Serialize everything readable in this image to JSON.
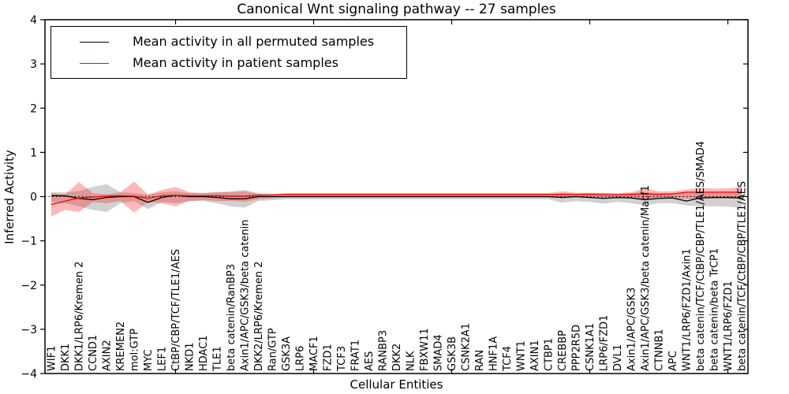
{
  "title": "Canonical Wnt signaling pathway -- 27 samples",
  "axes": {
    "ylabel": "Inferred Activity",
    "xlabel": "Cellular Entities",
    "yticks": [
      4,
      3,
      2,
      1,
      0,
      -1,
      -2,
      -3,
      -4
    ]
  },
  "legend": {
    "items": [
      {
        "label": "Mean activity in all permuted samples",
        "color": "#000000"
      },
      {
        "label": "Mean activity in patient samples",
        "color": "#ff0000"
      }
    ]
  },
  "colors": {
    "background": "#ffffff",
    "frame": "#000000",
    "permuted_line": "#000000",
    "patient_line": "#ff0000",
    "permuted_band": "#999999",
    "patient_band": "#ff0000",
    "zero_line": "#000000"
  },
  "chart_data": {
    "type": "line",
    "title": "Canonical Wnt signaling pathway -- 27 samples",
    "xlabel": "Cellular Entities",
    "ylabel": "Inferred Activity",
    "ylim": [
      -4,
      4
    ],
    "grid": false,
    "legend_position": "upper left",
    "zero_line": true,
    "categories": [
      "WIF1",
      "DKK1",
      "DKK1/LRP6/Kremen 2",
      "CCND1",
      "AXIN2",
      "KREMEN2",
      "mol:GTP",
      "MYC",
      "LEF1",
      "CtBP/CBP/TCF/TLE1/AES",
      "NKD1",
      "HDAC1",
      "TLE1",
      "beta catenin/RanBP3",
      "Axin1/APC/GSK3/beta catenin",
      "DKK2/LRP6/Kremen 2",
      "Ran/GTP",
      "GSK3A",
      "LRP6",
      "MACF1",
      "FZD1",
      "TCF3",
      "FRAT1",
      "AES",
      "RANBP3",
      "DKK2",
      "NLK",
      "FBXW11",
      "SMAD4",
      "GSK3B",
      "CSNK2A1",
      "RAN",
      "HNF1A",
      "TCF4",
      "WNT1",
      "AXIN1",
      "CTBP1",
      "CREBBP",
      "PPP2R5D",
      "CSNK1A1",
      "LRP6/FZD1",
      "DVL1",
      "Axin1/APC/GSK3",
      "Axin1/APC/GSK3/beta catenin/Macf1",
      "CTNNB1",
      "APC",
      "WNT1/LRP6/FZD1/Axin1",
      "beta catenin/TCF/CtBP/CBP/TLE1/AES/SMAD4",
      "beta catenin/beta TrCP1",
      "WNT1/LRP6/FZD1",
      "beta catenin/TCF/CtBP/CBP/TLE1/AES"
    ],
    "series": [
      {
        "name": "Mean activity in all permuted samples",
        "color": "#000000",
        "values": [
          0.02,
          0.02,
          -0.04,
          -0.07,
          -0.02,
          0,
          0,
          -0.13,
          -0.02,
          0.03,
          0,
          0,
          -0.02,
          -0.05,
          -0.05,
          0,
          0,
          0,
          0,
          0,
          0,
          0,
          0,
          0,
          0,
          0,
          0,
          0,
          0,
          0,
          0,
          0,
          0,
          0,
          0,
          0,
          0,
          -0.02,
          0,
          -0.02,
          -0.04,
          -0.02,
          -0.03,
          -0.07,
          -0.04,
          -0.03,
          -0.1,
          -0.03,
          -0.02,
          -0.02,
          -0.03
        ]
      },
      {
        "name": "Mean activity in patient samples",
        "color": "#ff0000",
        "values": [
          -0.18,
          -0.1,
          -0.03,
          -0.01,
          0.01,
          0.02,
          0.01,
          -0.04,
          0.02,
          0.03,
          0.02,
          0.02,
          0.02,
          0.01,
          0.01,
          0.03,
          0.04,
          0.05,
          0.05,
          0.05,
          0.05,
          0.05,
          0.05,
          0.05,
          0.05,
          0.05,
          0.05,
          0.05,
          0.05,
          0.05,
          0.05,
          0.05,
          0.05,
          0.05,
          0.05,
          0.05,
          0.05,
          0.05,
          0.05,
          0.05,
          0.04,
          0.04,
          0.05,
          0.06,
          0.05,
          0.06,
          0.1,
          0.1,
          0.1,
          0.1,
          0.1
        ]
      }
    ],
    "bands": [
      {
        "name": "permuted-spread",
        "color": "#999999",
        "opacity": 0.45,
        "upper": [
          0.1,
          0.1,
          0.12,
          0.22,
          0.28,
          0.1,
          0.08,
          0.04,
          0.1,
          0.12,
          0.08,
          0.08,
          0.1,
          0.12,
          0.15,
          0.08,
          0.06,
          0.05,
          0.05,
          0.05,
          0.05,
          0.05,
          0.05,
          0.05,
          0.05,
          0.05,
          0.05,
          0.05,
          0.05,
          0.05,
          0.05,
          0.05,
          0.05,
          0.05,
          0.05,
          0.05,
          0.05,
          0.08,
          0.06,
          0.08,
          0.08,
          0.06,
          0.08,
          0.1,
          0.08,
          0.08,
          0.1,
          0.1,
          0.1,
          0.1,
          0.1
        ],
        "lower": [
          -0.12,
          -0.15,
          -0.22,
          -0.3,
          -0.35,
          -0.15,
          -0.1,
          -0.28,
          -0.12,
          -0.15,
          -0.1,
          -0.1,
          -0.15,
          -0.22,
          -0.25,
          -0.1,
          -0.08,
          -0.06,
          -0.06,
          -0.06,
          -0.06,
          -0.06,
          -0.06,
          -0.06,
          -0.06,
          -0.06,
          -0.06,
          -0.06,
          -0.06,
          -0.06,
          -0.06,
          -0.06,
          -0.06,
          -0.06,
          -0.06,
          -0.06,
          -0.06,
          -0.14,
          -0.1,
          -0.12,
          -0.16,
          -0.12,
          -0.15,
          -0.2,
          -0.15,
          -0.15,
          -0.2,
          -0.22,
          -0.22,
          -0.23,
          -0.25
        ]
      },
      {
        "name": "patient-spread",
        "color": "#ff0000",
        "opacity": 0.28,
        "upper": [
          0.08,
          0.05,
          0.33,
          0.08,
          0.05,
          0.1,
          0.34,
          0.05,
          0.15,
          0.22,
          0.1,
          0.08,
          0.1,
          0.1,
          0.12,
          0.06,
          0.05,
          0.08,
          0.08,
          0.08,
          0.08,
          0.08,
          0.08,
          0.08,
          0.08,
          0.08,
          0.08,
          0.08,
          0.08,
          0.08,
          0.08,
          0.08,
          0.08,
          0.08,
          0.08,
          0.08,
          0.08,
          0.12,
          0.09,
          0.09,
          0.08,
          0.08,
          0.1,
          0.18,
          0.12,
          0.12,
          0.16,
          0.2,
          0.18,
          0.19,
          0.22
        ],
        "lower": [
          -0.45,
          -0.3,
          -0.35,
          -0.12,
          -0.15,
          -0.1,
          -0.36,
          -0.12,
          -0.15,
          -0.22,
          -0.1,
          -0.08,
          -0.1,
          -0.1,
          -0.12,
          -0.06,
          -0.04,
          -0.02,
          -0.02,
          -0.02,
          -0.02,
          -0.02,
          -0.02,
          -0.02,
          -0.02,
          -0.02,
          -0.02,
          -0.02,
          -0.02,
          -0.02,
          -0.02,
          -0.02,
          -0.02,
          -0.02,
          -0.02,
          -0.02,
          -0.02,
          -0.03,
          -0.02,
          -0.03,
          -0.04,
          -0.04,
          -0.03,
          -0.05,
          -0.03,
          -0.03,
          -0.05,
          -0.05,
          -0.04,
          -0.04,
          -0.05
        ]
      }
    ]
  }
}
